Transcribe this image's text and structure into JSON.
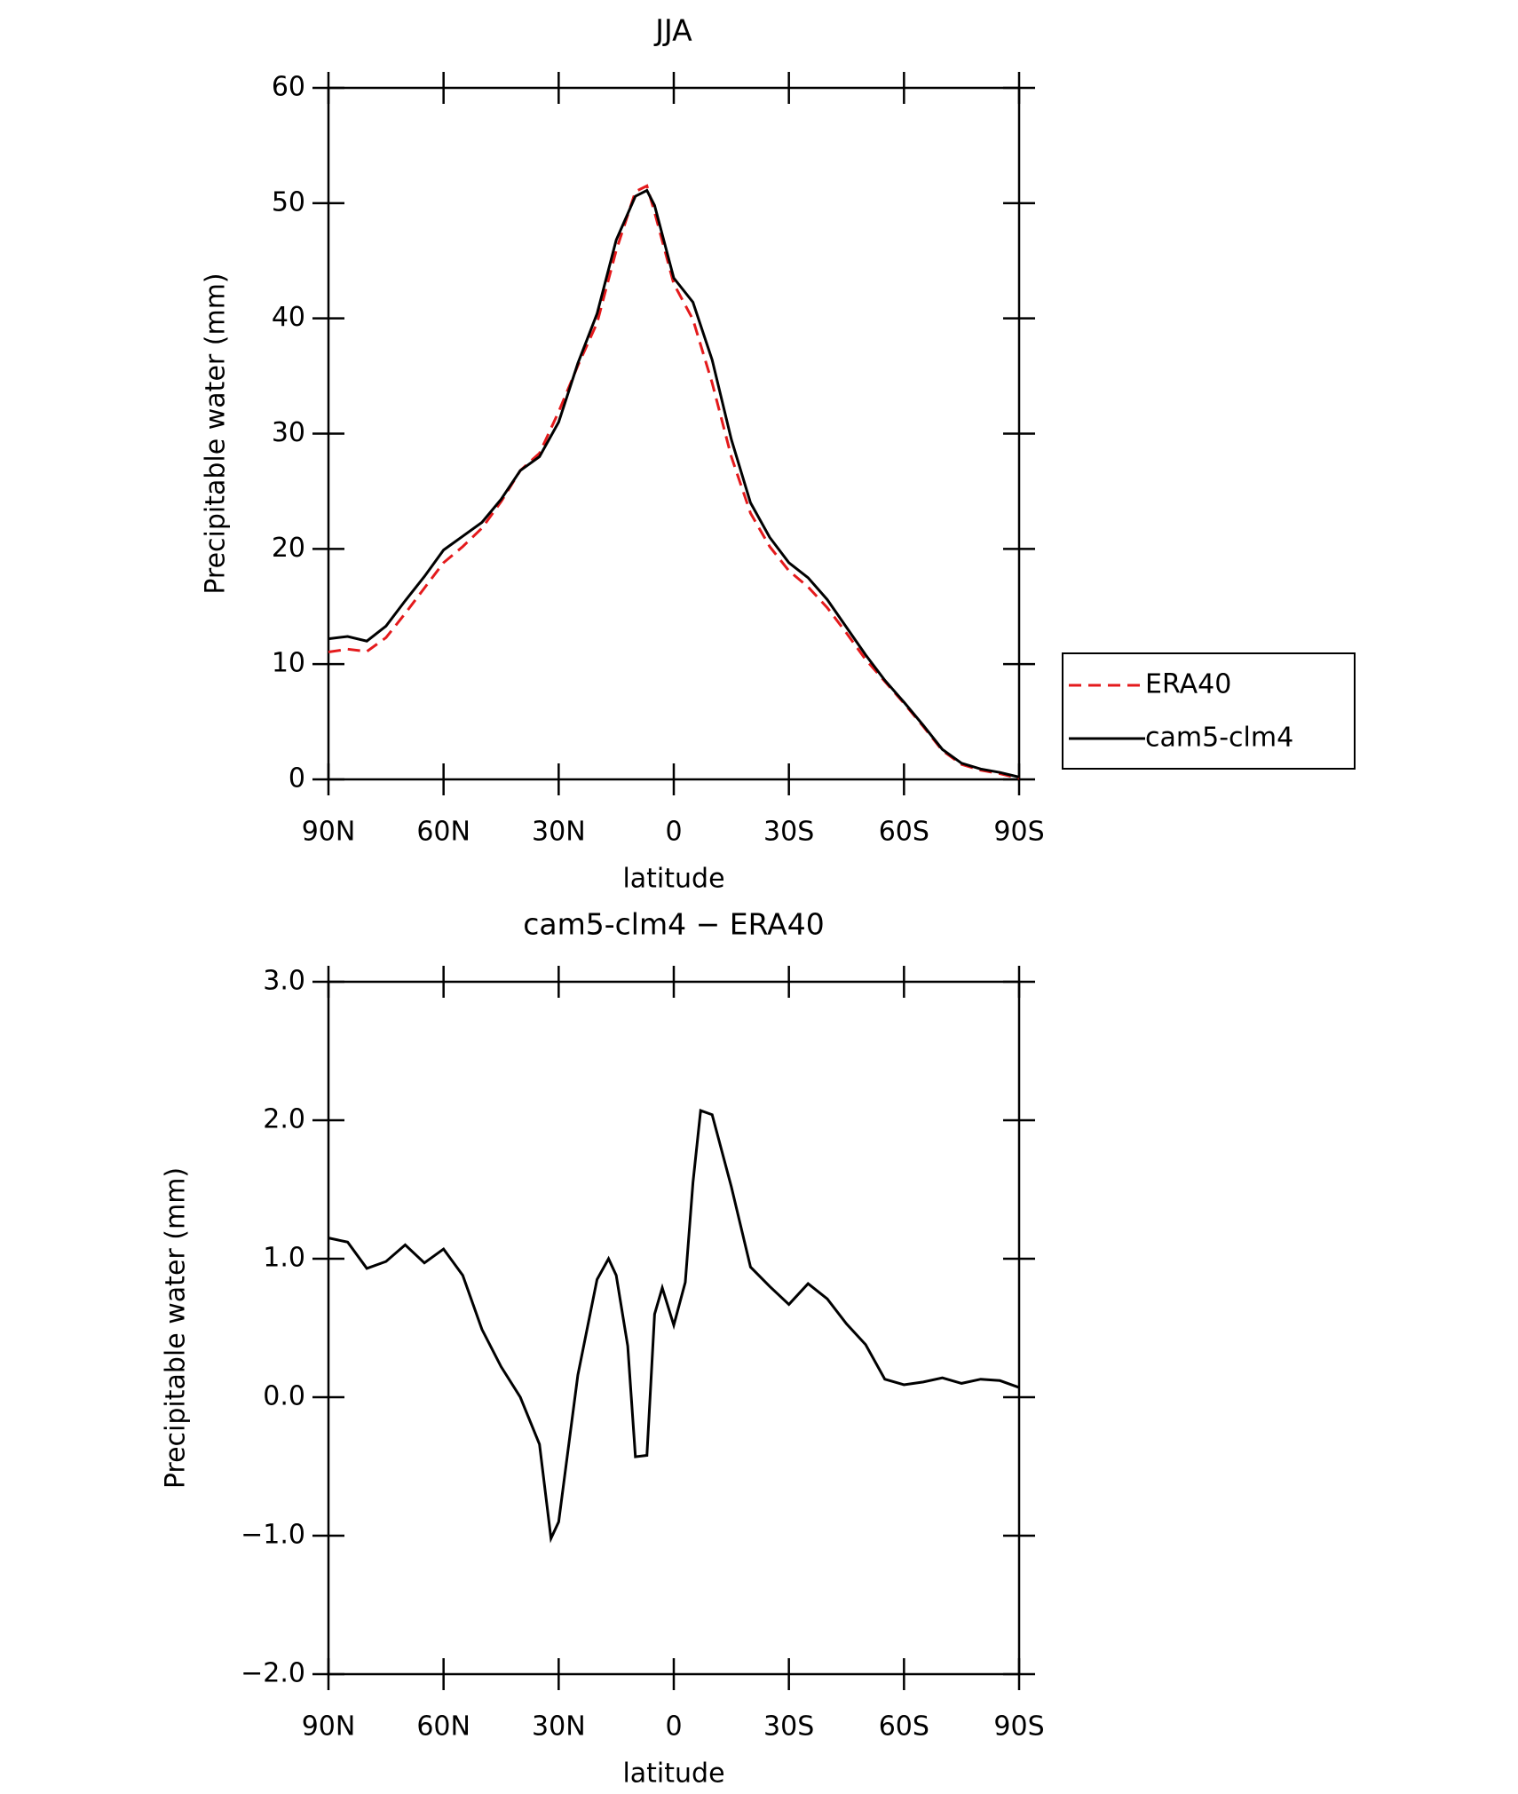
{
  "chart_data": [
    {
      "type": "line",
      "title": "JJA",
      "xlabel": "latitude",
      "ylabel": "Precipitable water (mm)",
      "x": [
        90,
        85,
        80,
        75,
        70,
        65,
        60,
        55,
        50,
        45,
        40,
        35,
        30,
        25,
        20,
        15,
        10,
        7,
        5,
        0,
        -5,
        -10,
        -15,
        -20,
        -25,
        -30,
        -35,
        -40,
        -45,
        -50,
        -55,
        -60,
        -65,
        -70,
        -75,
        -80,
        -85,
        -90
      ],
      "series": [
        {
          "name": "ERA40",
          "color": "#e41a1c",
          "dash": true,
          "values": [
            11.05,
            11.3,
            11.1,
            12.3,
            14.4,
            16.6,
            18.8,
            20.2,
            21.8,
            24.1,
            26.8,
            28.3,
            31.9,
            35.9,
            39.6,
            45.9,
            51.0,
            51.5,
            49.2,
            43.0,
            39.9,
            34.4,
            28.0,
            23.1,
            20.2,
            18.1,
            16.7,
            14.9,
            12.7,
            10.4,
            8.5,
            6.6,
            4.6,
            2.5,
            1.3,
            0.8,
            0.5,
            0.1
          ]
        },
        {
          "name": "cam5-clm4",
          "color": "#000000",
          "dash": false,
          "values": [
            12.2,
            12.4,
            12.0,
            13.3,
            15.5,
            17.6,
            19.9,
            21.1,
            22.3,
            24.3,
            26.8,
            28.0,
            31.0,
            36.1,
            40.4,
            46.8,
            50.6,
            51.1,
            49.8,
            43.5,
            41.4,
            36.4,
            29.5,
            24.0,
            21.0,
            18.8,
            17.5,
            15.6,
            13.2,
            10.8,
            8.6,
            6.7,
            4.7,
            2.6,
            1.4,
            0.9,
            0.6,
            0.2
          ]
        }
      ],
      "xlim": [
        90,
        -90
      ],
      "ylim": [
        0,
        60
      ],
      "xticks": [
        {
          "value": 90,
          "label": "90N"
        },
        {
          "value": 60,
          "label": "60N"
        },
        {
          "value": 30,
          "label": "30N"
        },
        0,
        {
          "value": -30,
          "label": "30S"
        },
        {
          "value": -60,
          "label": "60S"
        },
        {
          "value": -90,
          "label": "90S"
        }
      ],
      "yticks": [
        0,
        10,
        20,
        30,
        40,
        50,
        60
      ],
      "legend": "right"
    },
    {
      "type": "line",
      "title": "cam5-clm4 − ERA40",
      "xlabel": "latitude",
      "ylabel": "Precipitable water (mm)",
      "x": [
        90,
        85,
        80,
        75,
        70,
        65,
        60,
        55,
        50,
        45,
        40,
        35,
        32,
        30,
        25,
        20,
        17,
        15,
        12,
        10,
        7,
        5,
        3,
        0,
        -3,
        -5,
        -7,
        -10,
        -15,
        -20,
        -25,
        -30,
        -35,
        -40,
        -45,
        -50,
        -55,
        -60,
        -65,
        -70,
        -75,
        -80,
        -85,
        -90
      ],
      "series": [
        {
          "name": "cam5-clm4",
          "color": "#000000",
          "dash": false,
          "values": [
            1.15,
            1.12,
            0.93,
            0.98,
            1.1,
            0.97,
            1.07,
            0.88,
            0.49,
            0.22,
            0.0,
            -0.34,
            -1.02,
            -0.9,
            0.16,
            0.85,
            1.0,
            0.88,
            0.37,
            -0.43,
            -0.42,
            0.6,
            0.79,
            0.52,
            0.83,
            1.55,
            2.07,
            2.04,
            1.52,
            0.94,
            0.8,
            0.67,
            0.82,
            0.71,
            0.53,
            0.38,
            0.13,
            0.09,
            0.11,
            0.14,
            0.1,
            0.13,
            0.12,
            0.07
          ]
        }
      ],
      "xlim": [
        90,
        -90
      ],
      "ylim": [
        -2,
        3
      ],
      "xticks": [
        {
          "value": 90,
          "label": "90N"
        },
        {
          "value": 60,
          "label": "60N"
        },
        {
          "value": 30,
          "label": "30N"
        },
        0,
        {
          "value": -30,
          "label": "30S"
        },
        {
          "value": -60,
          "label": "60S"
        },
        {
          "value": -90,
          "label": "90S"
        }
      ],
      "yticks": [
        {
          "value": -2,
          "label": "−2.0"
        },
        {
          "value": -1,
          "label": "−1.0"
        },
        {
          "value": 0,
          "label": "0.0"
        },
        {
          "value": 1,
          "label": "1.0"
        },
        {
          "value": 2,
          "label": "2.0"
        },
        {
          "value": 3,
          "label": "3.0"
        }
      ]
    }
  ]
}
